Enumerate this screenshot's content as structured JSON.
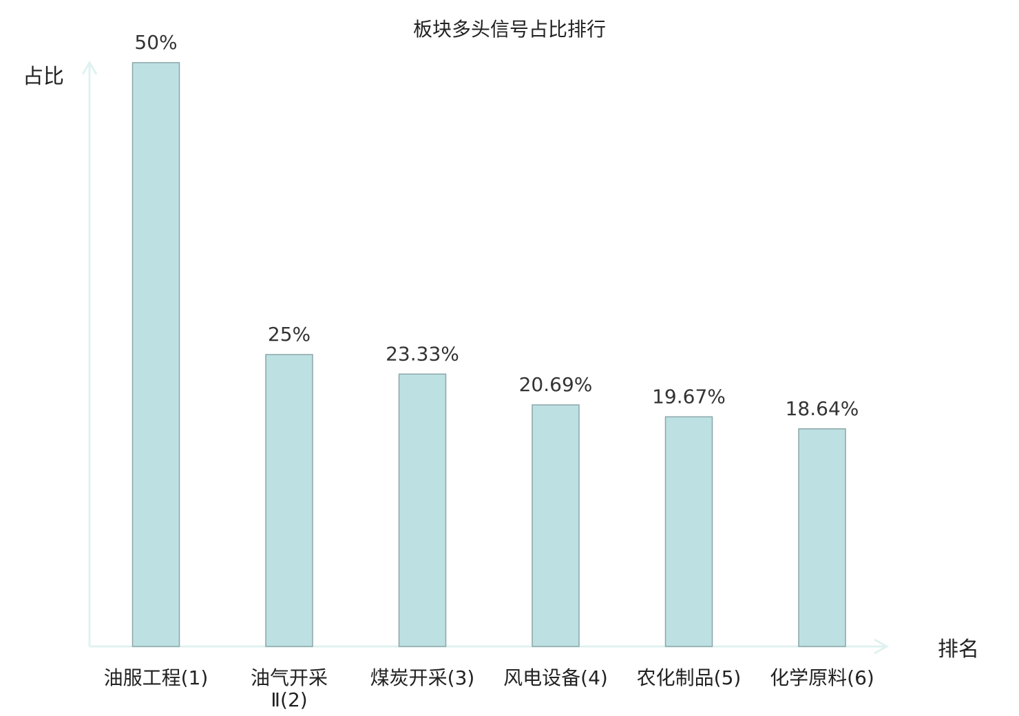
{
  "chart_data": {
    "type": "bar",
    "title": "板块多头信号占比排行",
    "ylabel": "占比",
    "xlabel": "排名",
    "ylim": [
      0,
      50
    ],
    "grid": false,
    "legend": "none",
    "categories": [
      {
        "lines": [
          "油服工程(1)"
        ],
        "highlight": false
      },
      {
        "lines": [
          "油气开采",
          "Ⅱ(2)"
        ],
        "highlight": false
      },
      {
        "lines": [
          "煤炭开采(3)"
        ],
        "highlight": false
      },
      {
        "lines": [
          "风电设备(4)"
        ],
        "highlight": false
      },
      {
        "lines": [
          "农化制品(5)"
        ],
        "highlight": false
      },
      {
        "lines": [
          "化学原料(6)"
        ],
        "highlight": true
      }
    ],
    "values": [
      50,
      25,
      23.33,
      20.69,
      19.67,
      18.64
    ],
    "value_labels": [
      "50%",
      "25%",
      "23.33%",
      "20.69%",
      "19.67%",
      "18.64%"
    ],
    "colors": {
      "bar_fill": "#bde0e3",
      "bar_stroke": "#8aa6a8",
      "axis": "#e0f2f0",
      "highlight_label": "#e02020",
      "label": "#222222"
    }
  }
}
